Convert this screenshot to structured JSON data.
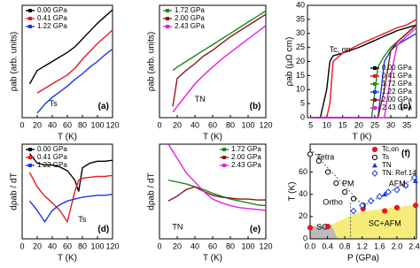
{
  "chart_data": [
    {
      "type": "line",
      "xlabel": "T (K)",
      "ylabel": "ρab (arb. units)",
      "panel_label": "(a)",
      "annotations": [
        "Ts"
      ],
      "x": [
        10,
        20,
        30,
        40,
        50,
        60,
        70,
        80,
        90,
        100,
        110,
        120
      ],
      "xlim": [
        0,
        120
      ],
      "xticks": [
        0,
        20,
        40,
        60,
        80,
        100,
        120
      ],
      "ylim": [
        0,
        1
      ],
      "legend": "upper left",
      "series": [
        {
          "name": "0.00 GPa",
          "color": "#000000",
          "values": [
            0.3,
            0.42,
            0.46,
            0.5,
            0.54,
            0.58,
            0.63,
            0.7,
            0.77,
            0.84,
            0.9,
            0.96
          ]
        },
        {
          "name": "0.41 GPa",
          "color": "#e8191c",
          "values": [
            null,
            0.22,
            0.26,
            0.3,
            0.34,
            0.38,
            0.44,
            0.52,
            0.59,
            0.66,
            0.72,
            0.78
          ]
        },
        {
          "name": "1.22 GPa",
          "color": "#1238e8",
          "values": [
            null,
            0.04,
            0.12,
            0.18,
            0.23,
            0.28,
            0.34,
            0.39,
            0.45,
            0.5,
            0.56,
            0.61
          ]
        }
      ]
    },
    {
      "type": "line",
      "xlabel": "T (K)",
      "ylabel": "ρab (arb. units)",
      "panel_label": "(b)",
      "annotations": [
        "TN"
      ],
      "x": [
        15,
        20,
        30,
        40,
        50,
        60,
        70,
        80,
        90,
        100,
        110,
        120
      ],
      "xlim": [
        0,
        120
      ],
      "xticks": [
        0,
        20,
        40,
        60,
        80,
        100,
        120
      ],
      "ylim": [
        0,
        1
      ],
      "legend": "upper left",
      "series": [
        {
          "name": "1.72 GPa",
          "color": "#1a8a1a",
          "values": [
            0.42,
            0.45,
            0.5,
            0.55,
            0.6,
            0.65,
            0.7,
            0.75,
            0.8,
            0.85,
            0.9,
            0.95
          ]
        },
        {
          "name": "2.00 GPa",
          "color": "#8b1a1a",
          "values": [
            0.1,
            0.35,
            0.42,
            0.48,
            0.55,
            0.6,
            0.66,
            0.72,
            0.77,
            0.82,
            0.87,
            0.92
          ]
        },
        {
          "name": "2.43 GPa",
          "color": "#e020e0",
          "values": [
            0.05,
            0.1,
            0.2,
            0.3,
            0.38,
            0.45,
            0.52,
            0.58,
            0.64,
            0.7,
            0.76,
            0.82
          ]
        }
      ]
    },
    {
      "type": "line",
      "xlabel": "T (K)",
      "ylabel": "ρab (μΩ cm)",
      "panel_label": "(c)",
      "annotations": [
        "Tc, on"
      ],
      "x": [
        5,
        8,
        10,
        11,
        12,
        15,
        20,
        24,
        26,
        28,
        30,
        32,
        35,
        38
      ],
      "xlim": [
        4,
        38
      ],
      "xticks": [
        5,
        10,
        15,
        20,
        25,
        30,
        35
      ],
      "ylim": [
        0,
        40
      ],
      "yticks": [
        0,
        5,
        10,
        15,
        20,
        25,
        30,
        35,
        40
      ],
      "legend": "lower right",
      "series": [
        {
          "name": "0.00 GPa",
          "color": "#000000",
          "values": [
            0,
            0,
            10,
            20,
            22,
            23,
            25,
            27,
            28,
            29,
            30,
            31,
            32,
            33
          ]
        },
        {
          "name": "0.41 GPa",
          "color": "#e8191c",
          "values": [
            0,
            0,
            0,
            5,
            20,
            23,
            26,
            28,
            29,
            30,
            31,
            32,
            33,
            35
          ]
        },
        {
          "name": "1.72 GPa",
          "color": "#1a8a1a",
          "values": [
            0,
            0,
            0,
            0,
            0,
            0,
            0,
            0,
            18,
            22,
            25,
            27,
            30,
            33
          ]
        },
        {
          "name": "1.22 GPa",
          "color": "#1238e8",
          "values": [
            0,
            0,
            0,
            0,
            0,
            0,
            0,
            0,
            0,
            20,
            24,
            26,
            28,
            30
          ]
        },
        {
          "name": "2.00 GPa",
          "color": "#8b1a1a",
          "values": [
            0,
            0,
            0,
            0,
            0,
            0,
            0,
            0,
            0,
            10,
            24,
            27,
            30,
            33
          ]
        },
        {
          "name": "2.43 GPa",
          "color": "#e020e0",
          "values": [
            0,
            0,
            0,
            0,
            0,
            0,
            0,
            0,
            0,
            0,
            15,
            26,
            29,
            32
          ]
        }
      ]
    },
    {
      "type": "line",
      "xlabel": "T (K)",
      "ylabel": "dρab / dT",
      "panel_label": "(d)",
      "annotations": [
        "Ts"
      ],
      "x": [
        10,
        20,
        30,
        40,
        50,
        60,
        70,
        75,
        80,
        90,
        100,
        110,
        120
      ],
      "xlim": [
        0,
        120
      ],
      "xticks": [
        0,
        20,
        40,
        60,
        80,
        100,
        120
      ],
      "ylim": [
        0,
        1
      ],
      "legend": "upper left",
      "series": [
        {
          "name": "0.00 GPa",
          "color": "#000000",
          "values": [
            0.9,
            0.8,
            0.78,
            0.78,
            0.76,
            0.72,
            0.62,
            0.5,
            0.75,
            0.8,
            0.82,
            0.82,
            0.83
          ]
        },
        {
          "name": "0.41 GPa",
          "color": "#e8191c",
          "values": [
            0.7,
            0.55,
            0.45,
            0.38,
            0.3,
            0.18,
            0.5,
            0.62,
            0.64,
            0.65,
            0.66,
            0.66,
            0.67
          ]
        },
        {
          "name": "1.22 GPa",
          "color": "#1238e8",
          "values": [
            0.4,
            0.3,
            0.18,
            0.3,
            0.36,
            0.4,
            0.42,
            0.43,
            0.44,
            0.45,
            0.46,
            0.46,
            0.47
          ]
        }
      ]
    },
    {
      "type": "line",
      "xlabel": "T (K)",
      "ylabel": "dρab / dT",
      "panel_label": "(e)",
      "annotations": [
        "TN"
      ],
      "x": [
        10,
        20,
        30,
        40,
        50,
        60,
        70,
        80,
        90,
        100,
        110,
        120
      ],
      "xlim": [
        0,
        120
      ],
      "xticks": [
        0,
        20,
        40,
        60,
        80,
        100,
        120
      ],
      "ylim": [
        0,
        1
      ],
      "legend": "upper right",
      "series": [
        {
          "name": "1.72 GPa",
          "color": "#1a8a1a",
          "values": [
            0.62,
            0.6,
            0.58,
            0.55,
            0.52,
            0.48,
            0.45,
            0.42,
            0.4,
            0.38,
            0.36,
            0.35
          ]
        },
        {
          "name": "2.00 GPa",
          "color": "#8b1a1a",
          "values": [
            0.4,
            0.45,
            0.52,
            0.55,
            0.5,
            0.46,
            0.44,
            0.43,
            0.42,
            0.42,
            0.41,
            0.41
          ]
        },
        {
          "name": "2.43 GPa",
          "color": "#e020e0",
          "values": [
            1.0,
            0.85,
            0.7,
            0.6,
            0.5,
            0.42,
            0.38,
            0.35,
            0.33,
            0.32,
            0.31,
            0.3
          ]
        }
      ]
    },
    {
      "type": "scatter",
      "xlabel": "P (GPa)",
      "ylabel": "T (K)",
      "panel_label": "(f)",
      "annotations": [
        "Tetra",
        "PM",
        "Ortho",
        "AFM",
        "SC",
        "SC+AFM"
      ],
      "xlim": [
        0,
        2.45
      ],
      "xticks": [
        {
          "value": 0,
          "label": "0.0"
        },
        0.4,
        0.8,
        1.2,
        1.6,
        {
          "value": 2,
          "label": "2.0"
        },
        2.4
      ],
      "ylim": [
        0,
        85
      ],
      "yticks": [
        0,
        20,
        40,
        60
      ],
      "legend": "upper right",
      "series": [
        {
          "name": "Tc,on",
          "color": "#e8191c",
          "marker": "circle",
          "x": [
            0,
            0.41,
            1.22,
            1.72,
            2.0,
            2.43
          ],
          "values": [
            10,
            11,
            27,
            25,
            28,
            30
          ]
        },
        {
          "name": "Ts",
          "color": "#000000",
          "marker": "open-circle",
          "x": [
            0,
            0.2,
            0.41,
            0.6,
            0.8,
            1.0,
            1.22
          ],
          "values": [
            76,
            70,
            60,
            50,
            42,
            36,
            30
          ]
        },
        {
          "name": "TN",
          "color": "#1238e8",
          "marker": "triangle",
          "x": [
            1.72,
            2.0,
            2.2,
            2.43
          ],
          "values": [
            40,
            45,
            48,
            52
          ]
        },
        {
          "name": "TN: Ref.14",
          "color": "#1238e8",
          "marker": "open-diamond",
          "x": [
            1.0,
            1.2,
            1.4,
            1.6,
            1.8,
            2.0,
            2.2,
            2.4
          ],
          "values": [
            25,
            30,
            34,
            38,
            42,
            44,
            48,
            55
          ]
        }
      ]
    }
  ]
}
